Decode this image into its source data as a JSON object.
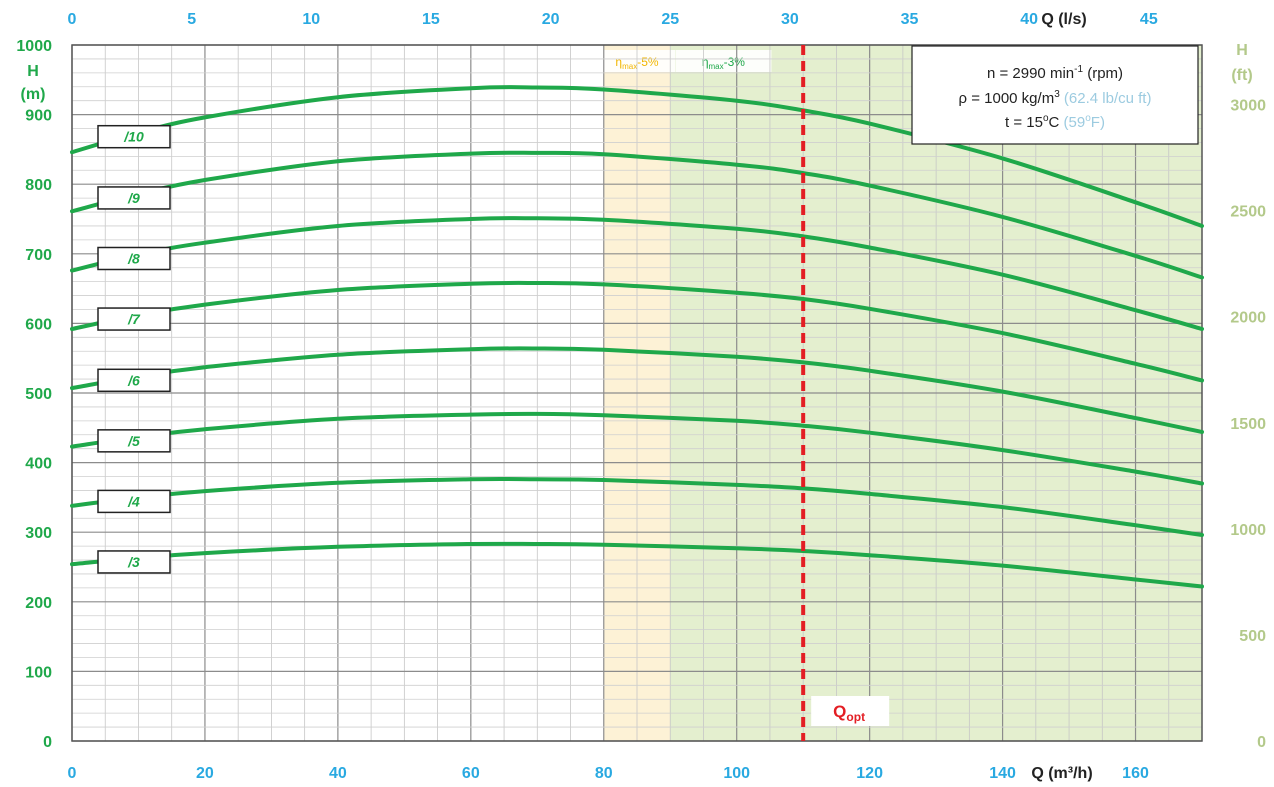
{
  "chart_data": {
    "type": "line",
    "x_axis_bottom": {
      "label": "Q (m³/h)",
      "range": [
        0,
        170
      ],
      "ticks": [
        0,
        20,
        40,
        60,
        80,
        100,
        120,
        140,
        160
      ]
    },
    "x_axis_top": {
      "label": "Q (l/s)",
      "ticks": [
        0,
        5,
        10,
        15,
        20,
        25,
        30,
        35,
        40,
        45
      ],
      "color": "#29a9e1"
    },
    "y_axis_left": {
      "label_line1": "H",
      "label_line2": "(m)",
      "range": [
        0,
        1000
      ],
      "ticks": [
        0,
        100,
        200,
        300,
        400,
        500,
        600,
        700,
        800,
        900,
        1000
      ],
      "color": "#1fa84a"
    },
    "y_axis_right": {
      "label_line1": "H",
      "label_line2": "(ft)",
      "ticks": [
        0,
        500,
        1000,
        1500,
        2000,
        2500,
        3000
      ],
      "color": "#b3c98a"
    },
    "grid": true,
    "series": [
      {
        "name": "/3",
        "x": [
          0,
          10,
          20,
          40,
          60,
          70,
          80,
          100,
          110,
          120,
          140,
          160,
          170
        ],
        "values": [
          254,
          263,
          270,
          279,
          283,
          283,
          282,
          277,
          273,
          267,
          252,
          232,
          222
        ]
      },
      {
        "name": "/4",
        "x": [
          0,
          10,
          20,
          40,
          60,
          70,
          80,
          100,
          110,
          120,
          140,
          160,
          170
        ],
        "values": [
          338,
          350,
          359,
          371,
          376,
          376,
          375,
          368,
          363,
          355,
          336,
          310,
          296
        ]
      },
      {
        "name": "/5",
        "x": [
          0,
          10,
          20,
          40,
          60,
          70,
          80,
          100,
          110,
          120,
          140,
          160,
          170
        ],
        "values": [
          423,
          437,
          448,
          463,
          469,
          470,
          468,
          460,
          453,
          443,
          418,
          387,
          370
        ]
      },
      {
        "name": "/6",
        "x": [
          0,
          10,
          20,
          40,
          60,
          70,
          80,
          100,
          110,
          120,
          140,
          160,
          170
        ],
        "values": [
          507,
          524,
          537,
          555,
          563,
          564,
          562,
          552,
          544,
          532,
          502,
          464,
          444
        ]
      },
      {
        "name": "/7",
        "x": [
          0,
          10,
          20,
          40,
          60,
          70,
          80,
          100,
          110,
          120,
          140,
          160,
          170
        ],
        "values": [
          592,
          612,
          627,
          648,
          657,
          658,
          656,
          644,
          635,
          621,
          586,
          542,
          518
        ]
      },
      {
        "name": "/8",
        "x": [
          0,
          10,
          20,
          40,
          60,
          70,
          80,
          100,
          110,
          120,
          140,
          160,
          170
        ],
        "values": [
          676,
          699,
          716,
          740,
          750,
          751,
          749,
          736,
          725,
          709,
          670,
          619,
          592
        ]
      },
      {
        "name": "/9",
        "x": [
          0,
          10,
          20,
          40,
          60,
          70,
          80,
          100,
          110,
          120,
          140,
          160,
          170
        ],
        "values": [
          761,
          786,
          806,
          833,
          844,
          845,
          843,
          828,
          816,
          798,
          753,
          697,
          666
        ]
      },
      {
        "name": "/10",
        "x": [
          0,
          10,
          20,
          40,
          60,
          70,
          80,
          100,
          110,
          120,
          140,
          160,
          170
        ],
        "values": [
          846,
          874,
          896,
          925,
          938,
          939,
          936,
          920,
          906,
          887,
          837,
          774,
          740
        ]
      }
    ],
    "series_color": "#1fa84a",
    "zones": [
      {
        "label_base": "η",
        "label_sub": "max",
        "label_suffix": "-5%",
        "x_from": 80,
        "x_to": 170,
        "fill": "#fdf2d6",
        "text_color": "#f2b705"
      },
      {
        "label_base": "η",
        "label_sub": "max",
        "label_suffix": "-3%",
        "x_from": 90,
        "x_to": 170,
        "fill": "#e4efcf",
        "text_color": "#1fa84a"
      }
    ],
    "q_opt": {
      "x": 110,
      "label_base": "Q",
      "label_sub": "opt",
      "color": "#e31e24"
    },
    "info_box": {
      "line1_pre": "n = 2990 min",
      "line1_sup": "-1",
      "line1_post": " (rpm)",
      "line2_pre": "ρ = 1000 kg/m",
      "line2_sup": "3",
      "line2_post": " ",
      "line2_alt": "(62.4 lb/cu ft)",
      "line3_pre": "t = 15",
      "line3_sup": "o",
      "line3_post": "C ",
      "line3_alt_pre": "(59",
      "line3_alt_sup": "o",
      "line3_alt_post": "F)",
      "alt_color": "#9ccbe0"
    }
  }
}
